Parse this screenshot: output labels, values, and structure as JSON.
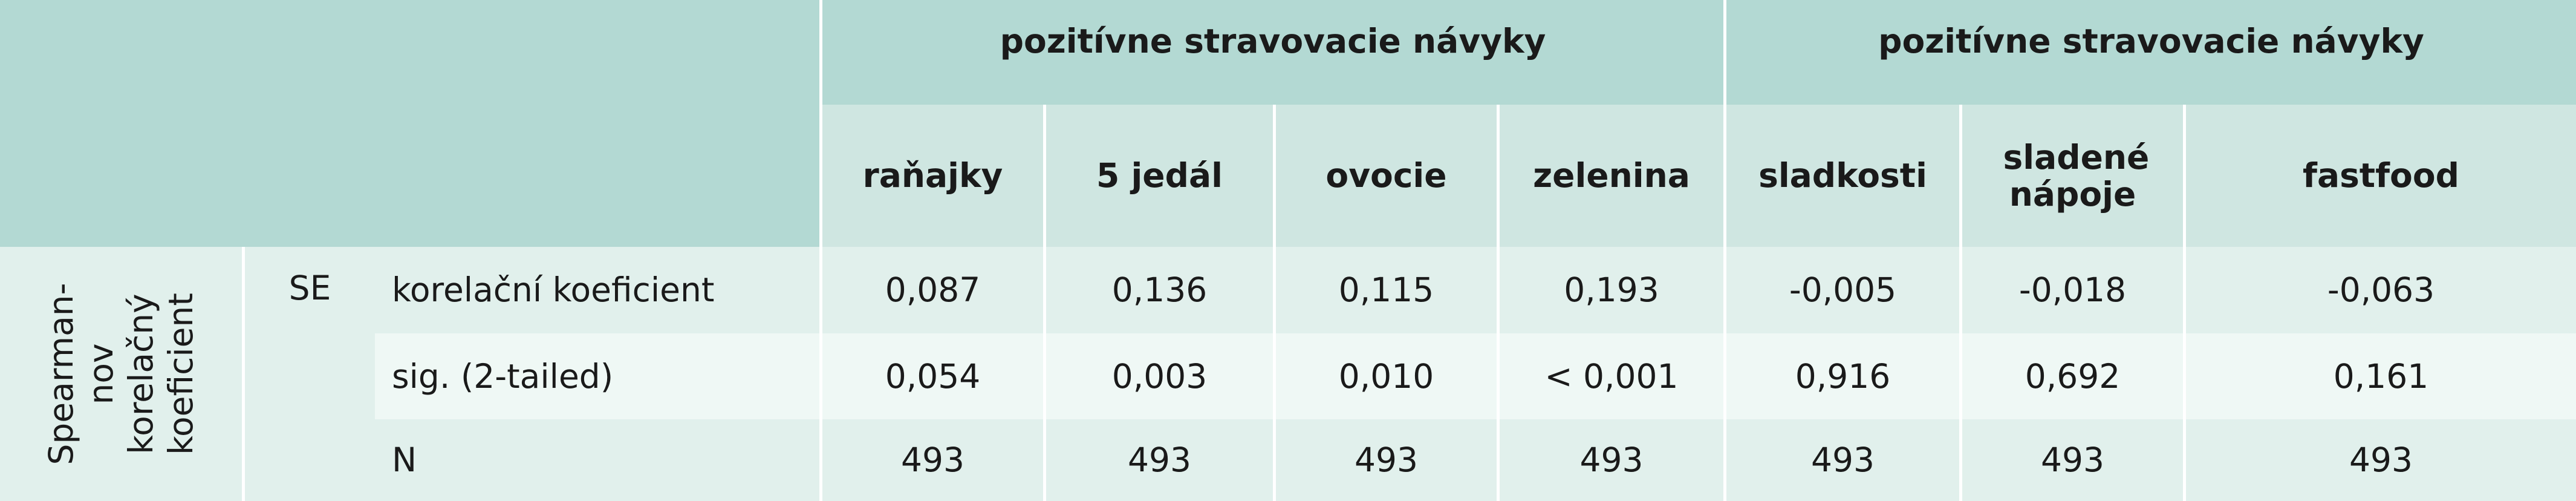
{
  "table": {
    "header": {
      "group1": "pozitívne stravovacie návyky",
      "group2": "pozitívne stravovacie návyky",
      "columns": [
        "raňajky",
        "5 jedál",
        "ovocie",
        "zelenina",
        "sladkosti",
        "sladené nápoje",
        "fastfood"
      ]
    },
    "row_group_label": [
      "Spearman-",
      "nov",
      "korelačný",
      "koeficient"
    ],
    "variable": "SE",
    "rows": [
      {
        "label": "korelační koeficient",
        "values": [
          "0,087",
          "0,136",
          "0,115",
          "0,193",
          "-0,005",
          "-0,018",
          "-0,063"
        ]
      },
      {
        "label": "sig. (2-tailed)",
        "values": [
          "0,054",
          "0,003",
          "0,010",
          "< 0,001",
          "0,916",
          "0,692",
          "0,161"
        ]
      },
      {
        "label": "N",
        "values": [
          "493",
          "493",
          "493",
          "493",
          "493",
          "493",
          "493"
        ]
      }
    ]
  },
  "colors": {
    "header_dark": "#b3d9d3",
    "header_light": "#cfe6e1",
    "row_a": "#e1f0ec",
    "row_b": "#eff8f5"
  }
}
